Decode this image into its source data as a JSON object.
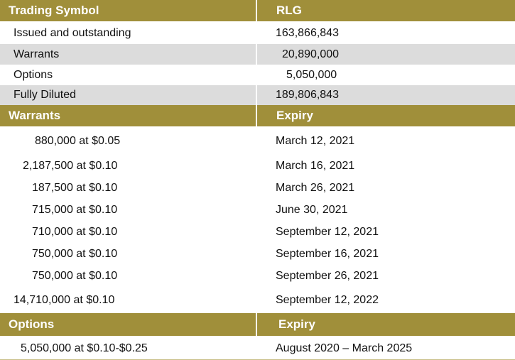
{
  "summary": {
    "header": {
      "label": "Trading Symbol",
      "value": "RLG"
    },
    "rows": [
      {
        "label": "Issued and outstanding",
        "value": "163,866,843"
      },
      {
        "label": "Warrants",
        "value": "20,890,000"
      },
      {
        "label": "Options",
        "value": "5,050,000"
      },
      {
        "label": "Fully Diluted",
        "value": "189,806,843"
      }
    ]
  },
  "warrants": {
    "header": {
      "label": "Warrants",
      "value": "Expiry"
    },
    "rows": [
      {
        "label": "880,000 at $0.05",
        "value": "March 12, 2021"
      },
      {
        "label": "2,187,500 at $0.10",
        "value": "March 16, 2021"
      },
      {
        "label": "187,500 at $0.10",
        "value": "March 26, 2021"
      },
      {
        "label": "715,000 at $0.10",
        "value": "June 30, 2021"
      },
      {
        "label": "710,000 at $0.10",
        "value": "September 12, 2021"
      },
      {
        "label": "750,000 at $0.10",
        "value": "September 16, 2021"
      },
      {
        "label": "750,000 at $0.10",
        "value": "September 26, 2021"
      },
      {
        "label": "14,710,000 at $0.10",
        "value": "September 12, 2022"
      }
    ]
  },
  "options": {
    "header": {
      "label": "Options",
      "value": "Expiry"
    },
    "rows": [
      {
        "label": "5,050,000 at $0.10-$0.25",
        "value": "August 2020 – March 2025"
      }
    ]
  },
  "colors": {
    "header": "#a08f3a",
    "shade": "#dcdcdc"
  }
}
